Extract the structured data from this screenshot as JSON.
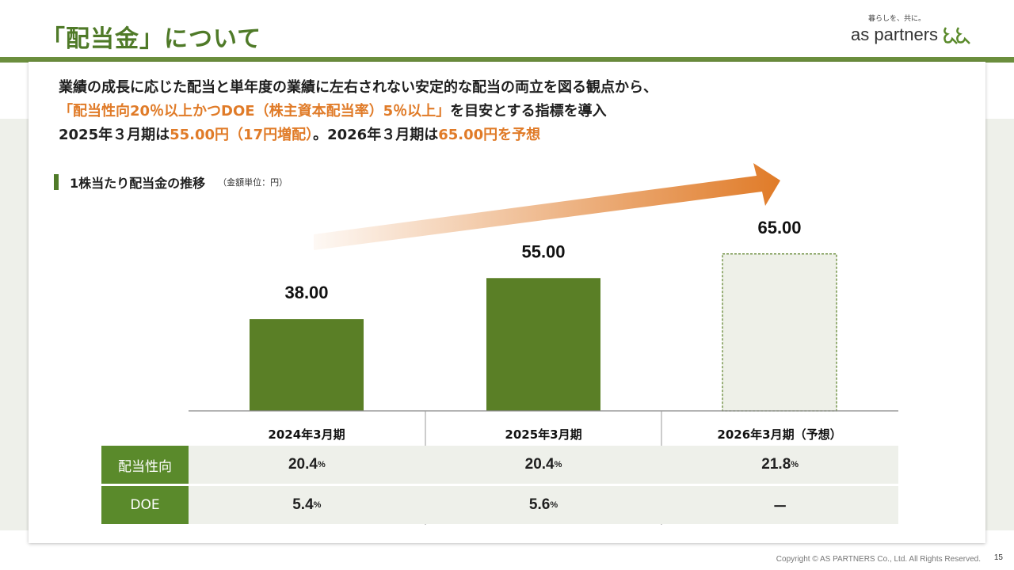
{
  "header": {
    "title": "「配当金」について",
    "brand_tagline": "暮らしを、共に。",
    "brand_name": "as partners"
  },
  "lead": {
    "line1": "業績の成長に応じた配当と単年度の業績に左右されない安定的な配当の両立を図る観点から、",
    "line2_highlight": "「配当性向20％以上かつDOE（株主資本配当率）5％以上」",
    "line2_rest": "を目安とする指標を導入",
    "line3_part1": "2025年３月期は",
    "line3_hl1": "55.00円（17円増配）",
    "line3_part2": "。2026年３月期は",
    "line3_hl2": "65.00円を予想"
  },
  "section": {
    "label": "1株当たり配当金の推移",
    "unit": "（金額単位：円）"
  },
  "chart_data": {
    "type": "bar",
    "title": "1株当たり配当金の推移",
    "unit": "円",
    "categories": [
      "2024年3月期",
      "2025年3月期",
      "2026年3月期（予想）"
    ],
    "values": [
      38.0,
      55.0,
      65.0
    ],
    "value_labels": [
      "38.00",
      "55.00",
      "65.00"
    ],
    "forecast": [
      false,
      false,
      true
    ],
    "colors": {
      "actual": "#5a7f26",
      "forecast_fill": "#eef0e8",
      "forecast_border": "#5a7f26",
      "arrow": "#e07b28"
    }
  },
  "table": {
    "rows": [
      {
        "label": "配当性向",
        "values": [
          "20.4",
          "20.4",
          "21.8"
        ],
        "units": [
          "%",
          "%",
          "%"
        ]
      },
      {
        "label": "DOE",
        "values": [
          "5.4",
          "5.6",
          "－"
        ],
        "units": [
          "%",
          "%",
          ""
        ]
      }
    ]
  },
  "footer": {
    "copyright": "Copyright © AS PARTNERS Co., Ltd. All Rights Reserved.",
    "page": "15"
  },
  "colors": {
    "accent": "#4f7a28",
    "highlight": "#e07b28",
    "band": "#eef0ea"
  }
}
